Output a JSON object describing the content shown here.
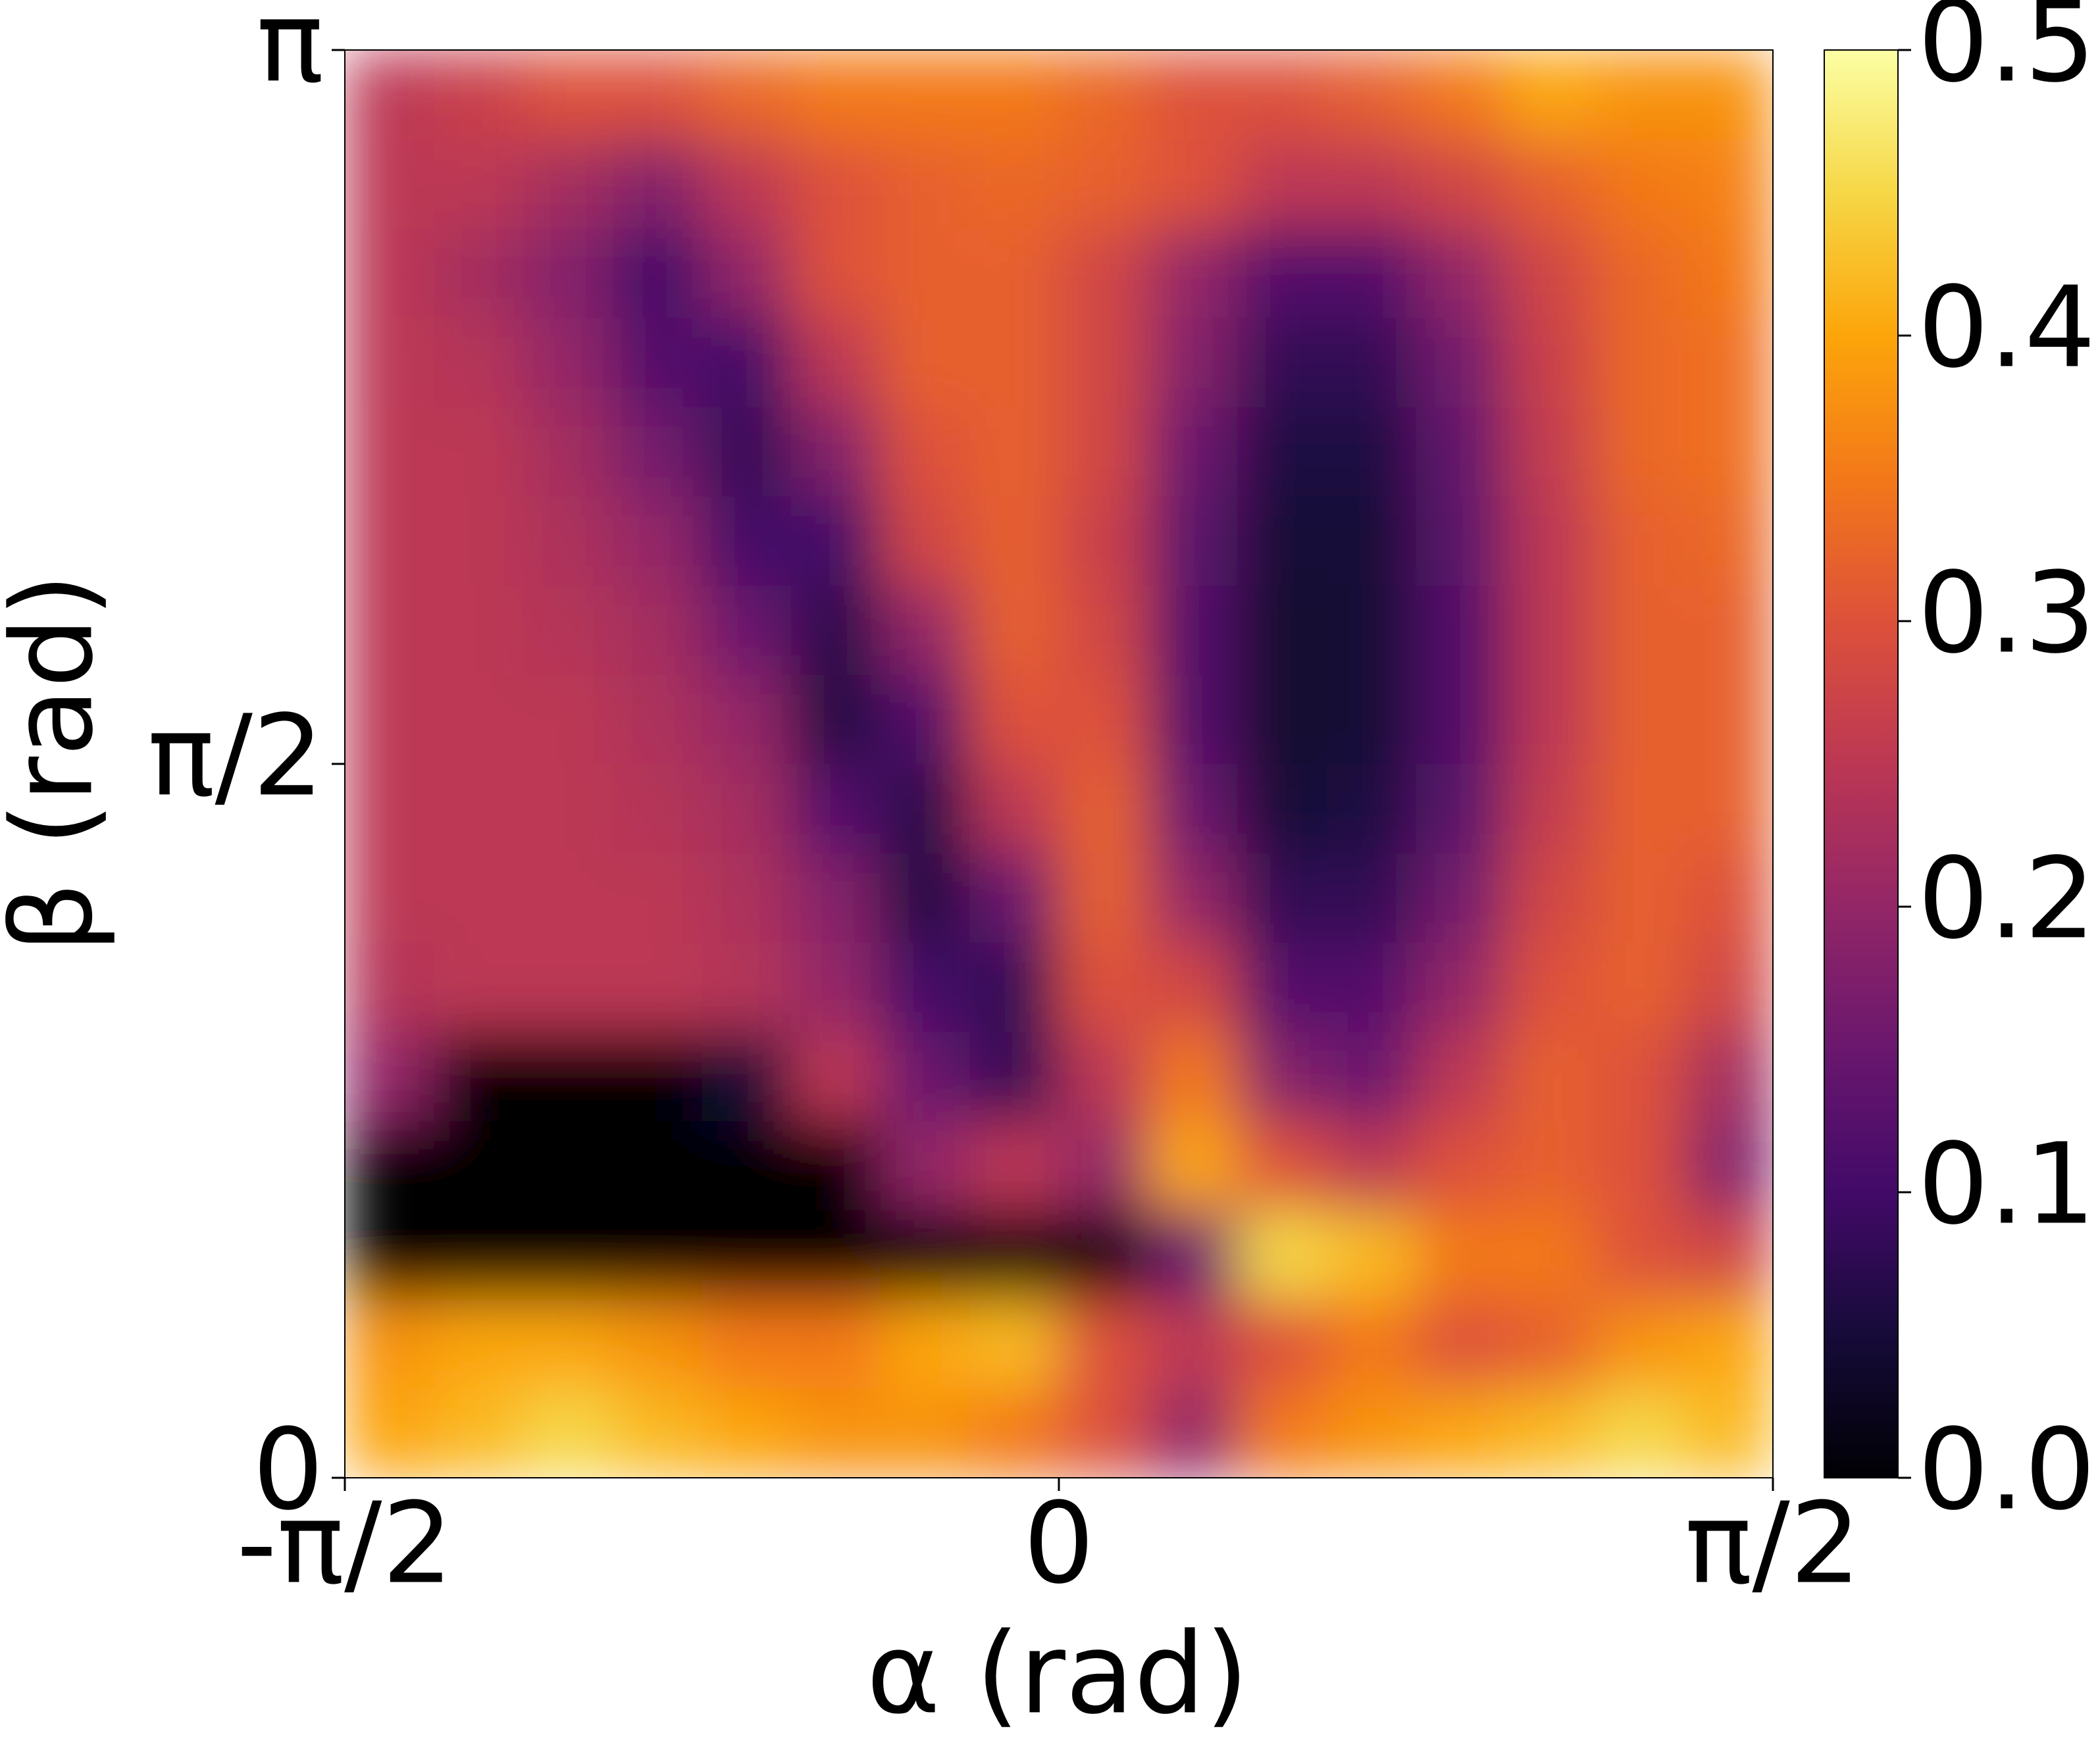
{
  "chart_data": {
    "type": "heatmap",
    "x_label": "α (rad)",
    "y_label": "β (rad)",
    "xlim": [
      -1.5708,
      1.5708
    ],
    "xticks": [
      {
        "value": -1.5708,
        "label": "-π/2"
      },
      0,
      {
        "value": 1.5708,
        "label": "π/2"
      }
    ],
    "ylim": [
      0,
      3.1416
    ],
    "yticks": [
      0,
      {
        "value": 1.5708,
        "label": "π/2"
      },
      {
        "value": 3.1416,
        "label": "π"
      }
    ],
    "clim": [
      0,
      0.5
    ],
    "cticks": [
      {
        "value": 0,
        "label": "0.0"
      },
      {
        "value": 0.1,
        "label": "0.1"
      },
      {
        "value": 0.2,
        "label": "0.2"
      },
      {
        "value": 0.3,
        "label": "0.3"
      },
      {
        "value": 0.4,
        "label": "0.4"
      },
      {
        "value": 0.5,
        "label": "0.5"
      }
    ],
    "colormap": [
      "#000004",
      "#160b39",
      "#420a68",
      "#6a176e",
      "#932667",
      "#bc3754",
      "#dd513a",
      "#f37819",
      "#fca50a",
      "#f6d746",
      "#fcffa4"
    ],
    "z": [
      [
        0.4,
        0.42,
        0.45,
        0.42,
        0.4,
        0.38,
        0.38,
        0.35,
        0.3,
        0.2,
        0.35,
        0.38,
        0.4,
        0.42,
        0.45,
        0.42
      ],
      [
        0.38,
        0.4,
        0.4,
        0.38,
        0.35,
        0.35,
        0.4,
        0.42,
        0.3,
        0.25,
        0.3,
        0.35,
        0.3,
        0.32,
        0.38,
        0.4
      ],
      [
        0,
        0,
        0,
        0,
        0,
        0,
        0,
        0,
        0,
        0.15,
        0.45,
        0.42,
        0.35,
        0.35,
        0.3,
        0.28
      ],
      [
        0,
        0,
        0,
        0,
        0,
        0,
        0.2,
        0.25,
        0.2,
        0.4,
        0.3,
        0.25,
        0.3,
        0.32,
        0.3,
        0.18
      ],
      [
        0.2,
        0,
        0,
        0,
        0.05,
        0.25,
        0.15,
        0.08,
        0.25,
        0.35,
        0.18,
        0.15,
        0.25,
        0.32,
        0.3,
        0.22
      ],
      [
        0.24,
        0.25,
        0.25,
        0.25,
        0.24,
        0.2,
        0.1,
        0.08,
        0.3,
        0.28,
        0.12,
        0.12,
        0.2,
        0.3,
        0.32,
        0.28
      ],
      [
        0.25,
        0.25,
        0.25,
        0.25,
        0.23,
        0.18,
        0.06,
        0.15,
        0.32,
        0.2,
        0.08,
        0.08,
        0.16,
        0.28,
        0.32,
        0.3
      ],
      [
        0.25,
        0.25,
        0.25,
        0.24,
        0.22,
        0.12,
        0.07,
        0.25,
        0.32,
        0.15,
        0.05,
        0.06,
        0.13,
        0.26,
        0.32,
        0.32
      ],
      [
        0.25,
        0.25,
        0.25,
        0.23,
        0.2,
        0.06,
        0.12,
        0.3,
        0.3,
        0.12,
        0.04,
        0.05,
        0.12,
        0.25,
        0.32,
        0.32
      ],
      [
        0.25,
        0.25,
        0.24,
        0.22,
        0.15,
        0.07,
        0.2,
        0.32,
        0.28,
        0.12,
        0.04,
        0.05,
        0.12,
        0.25,
        0.32,
        0.32
      ],
      [
        0.25,
        0.25,
        0.23,
        0.2,
        0.1,
        0.1,
        0.28,
        0.32,
        0.27,
        0.13,
        0.05,
        0.05,
        0.13,
        0.25,
        0.32,
        0.33
      ],
      [
        0.25,
        0.25,
        0.22,
        0.16,
        0.08,
        0.18,
        0.3,
        0.32,
        0.28,
        0.15,
        0.06,
        0.06,
        0.14,
        0.26,
        0.33,
        0.34
      ],
      [
        0.25,
        0.24,
        0.2,
        0.12,
        0.1,
        0.25,
        0.32,
        0.32,
        0.28,
        0.18,
        0.08,
        0.08,
        0.16,
        0.27,
        0.33,
        0.34
      ],
      [
        0.25,
        0.22,
        0.18,
        0.1,
        0.2,
        0.3,
        0.32,
        0.32,
        0.28,
        0.2,
        0.12,
        0.12,
        0.2,
        0.28,
        0.33,
        0.35
      ],
      [
        0.25,
        0.25,
        0.22,
        0.18,
        0.25,
        0.3,
        0.32,
        0.33,
        0.32,
        0.3,
        0.25,
        0.25,
        0.28,
        0.32,
        0.35,
        0.36
      ],
      [
        0.25,
        0.27,
        0.3,
        0.3,
        0.33,
        0.35,
        0.35,
        0.35,
        0.33,
        0.3,
        0.3,
        0.32,
        0.35,
        0.4,
        0.38,
        0.38
      ]
    ]
  }
}
